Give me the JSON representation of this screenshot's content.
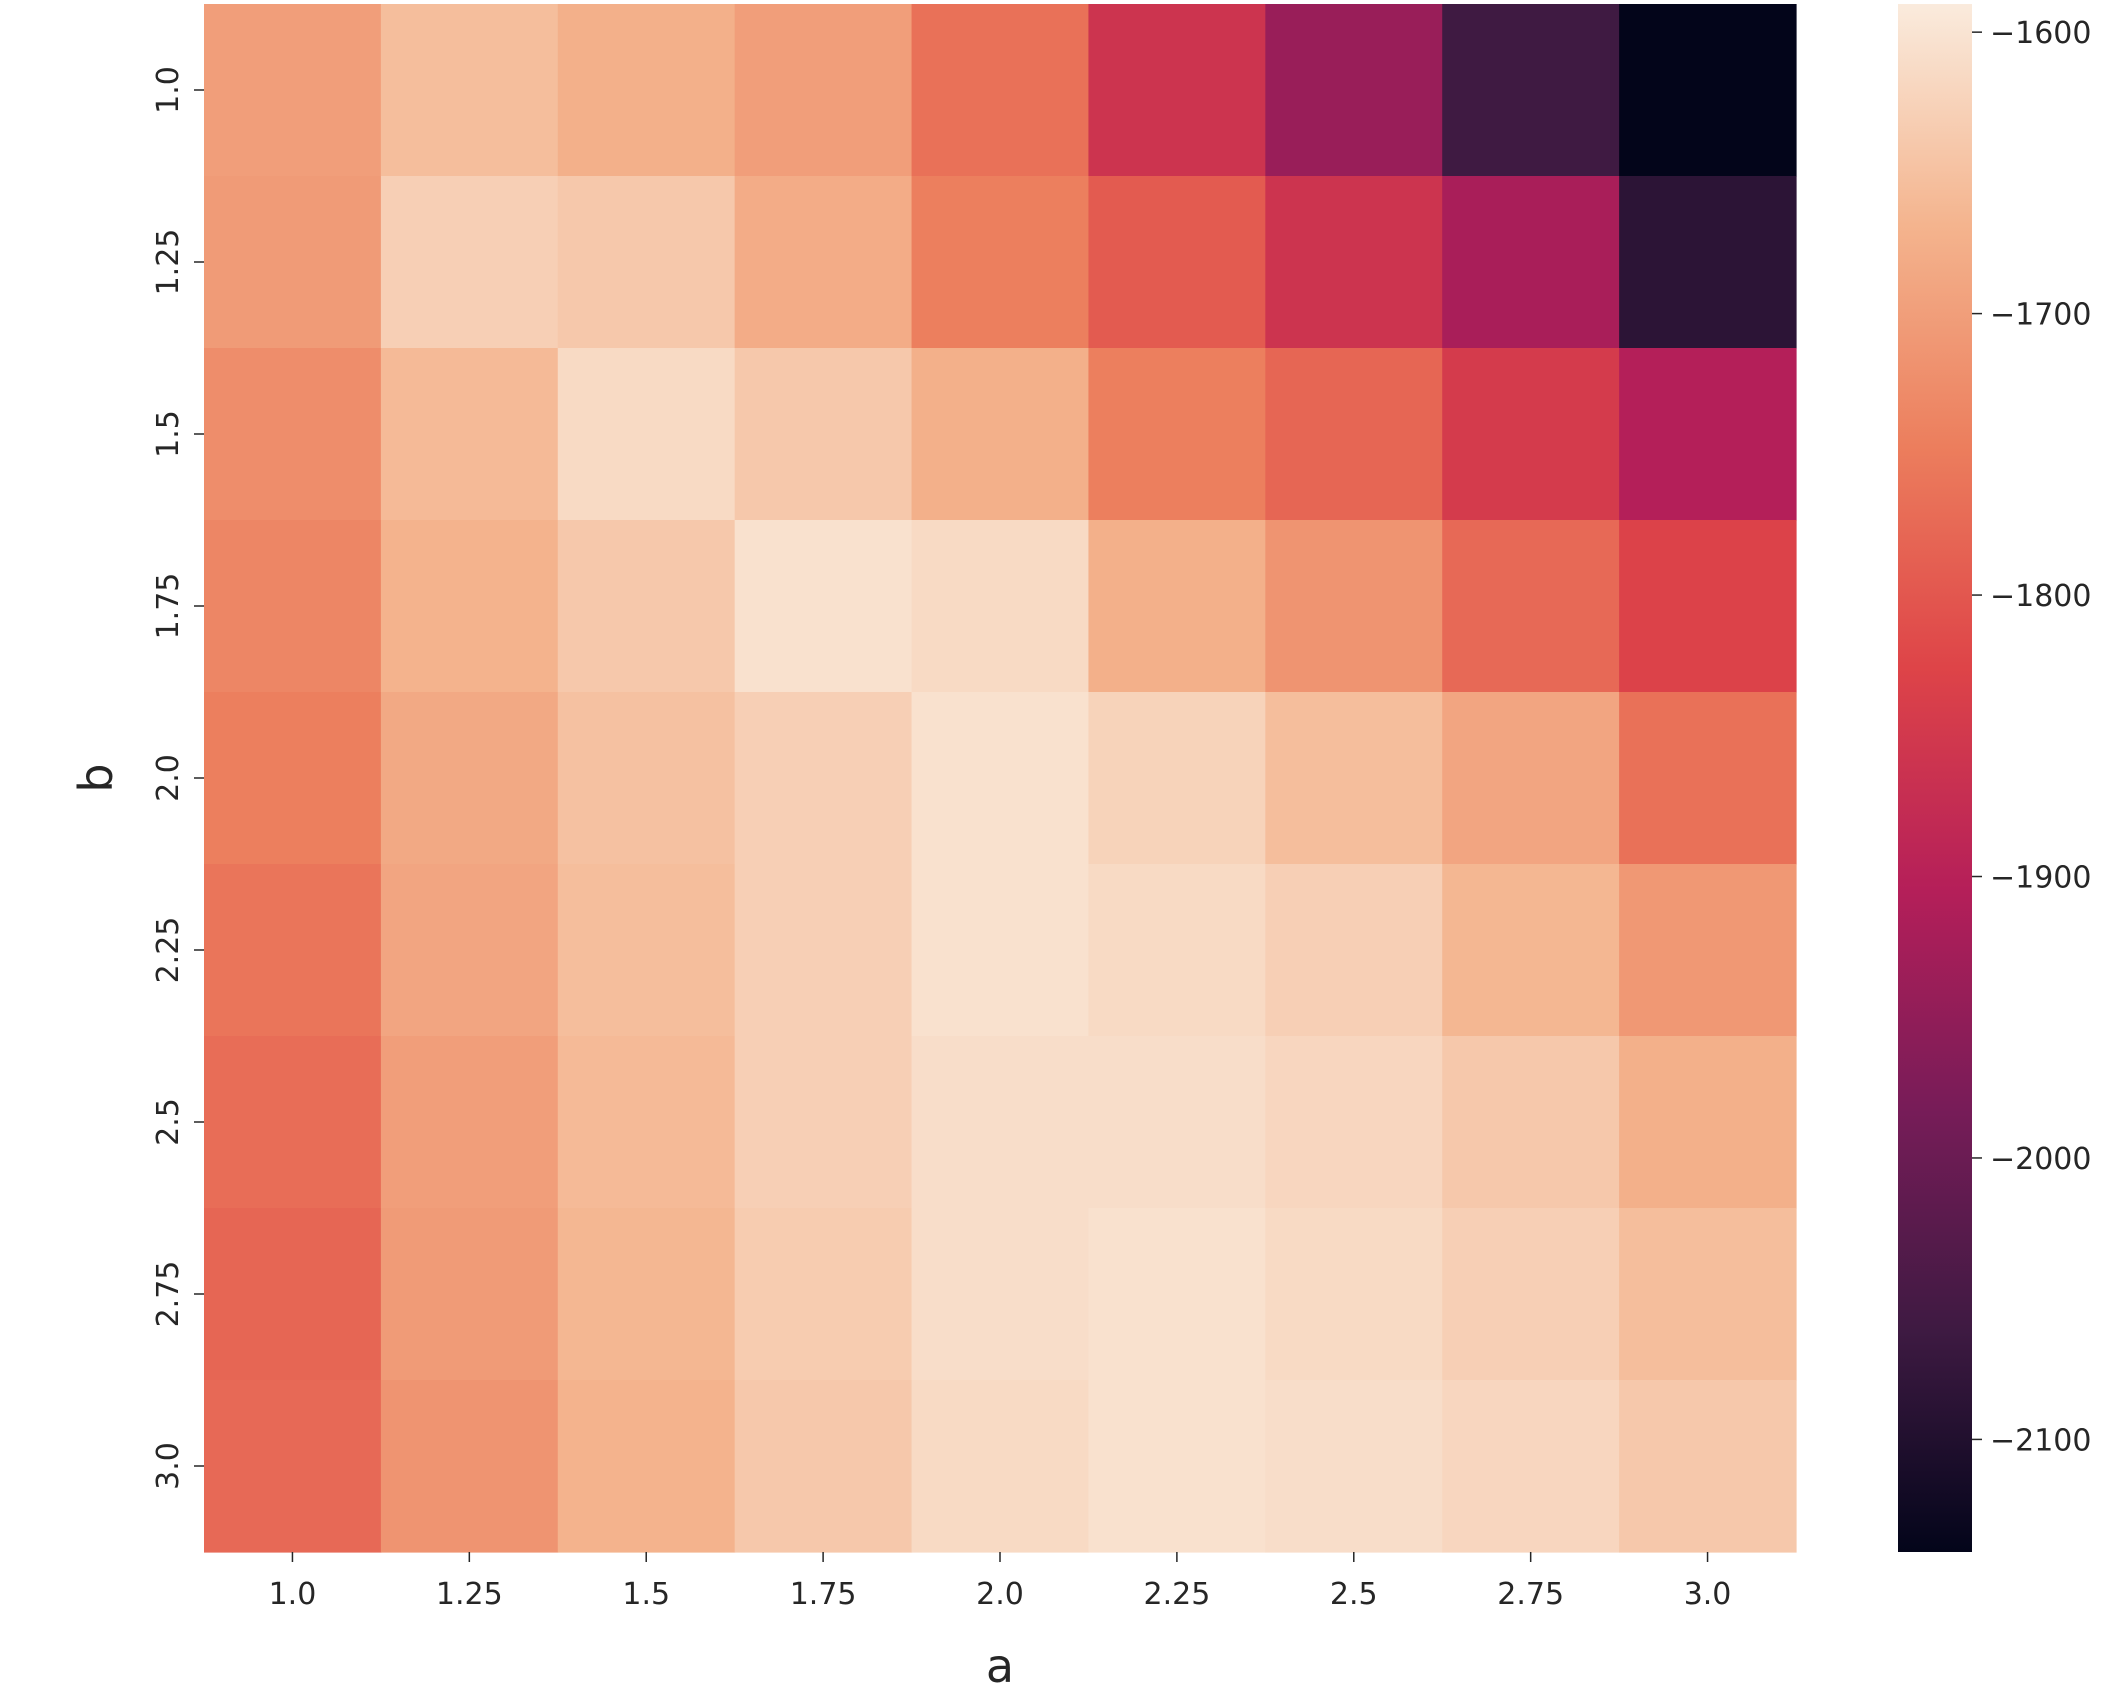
{
  "chart_data": {
    "type": "heatmap",
    "xlabel": "a",
    "ylabel": "b",
    "x_categories": [
      "1.0",
      "1.25",
      "1.5",
      "1.75",
      "2.0",
      "2.25",
      "2.5",
      "2.75",
      "3.0"
    ],
    "y_categories": [
      "1.0",
      "1.25",
      "1.5",
      "1.75",
      "2.0",
      "2.25",
      "2.5",
      "2.75",
      "3.0"
    ],
    "values": [
      [
        -1700,
        -1655,
        -1675,
        -1700,
        -1765,
        -1860,
        -1940,
        -2060,
        -2140
      ],
      [
        -1705,
        -1630,
        -1640,
        -1680,
        -1745,
        -1795,
        -1860,
        -1920,
        -2085
      ],
      [
        -1725,
        -1660,
        -1615,
        -1640,
        -1675,
        -1745,
        -1780,
        -1845,
        -1905
      ],
      [
        -1735,
        -1670,
        -1640,
        -1605,
        -1615,
        -1675,
        -1715,
        -1775,
        -1830
      ],
      [
        -1745,
        -1685,
        -1650,
        -1630,
        -1605,
        -1625,
        -1655,
        -1690,
        -1765
      ],
      [
        -1760,
        -1690,
        -1655,
        -1630,
        -1605,
        -1615,
        -1630,
        -1665,
        -1710
      ],
      [
        -1770,
        -1700,
        -1660,
        -1630,
        -1610,
        -1610,
        -1620,
        -1640,
        -1675
      ],
      [
        -1780,
        -1705,
        -1665,
        -1635,
        -1610,
        -1605,
        -1615,
        -1630,
        -1655
      ],
      [
        -1775,
        -1715,
        -1670,
        -1640,
        -1615,
        -1605,
        -1610,
        -1620,
        -1640
      ]
    ],
    "colorbar": {
      "range": [
        -2140,
        -1590
      ],
      "ticks": [
        -1600,
        -1700,
        -1800,
        -1900,
        -2000,
        -2100
      ],
      "tick_labels": [
        "−1600",
        "−1700",
        "−1800",
        "−1900",
        "−2000",
        "−2100"
      ]
    },
    "colormap": {
      "name": "rocket",
      "stops": [
        "#03051A",
        "#3E1A42",
        "#771C58",
        "#B51F59",
        "#DE4448",
        "#EC7E5D",
        "#F4B48E",
        "#FAEBDD"
      ]
    },
    "grid": false
  }
}
